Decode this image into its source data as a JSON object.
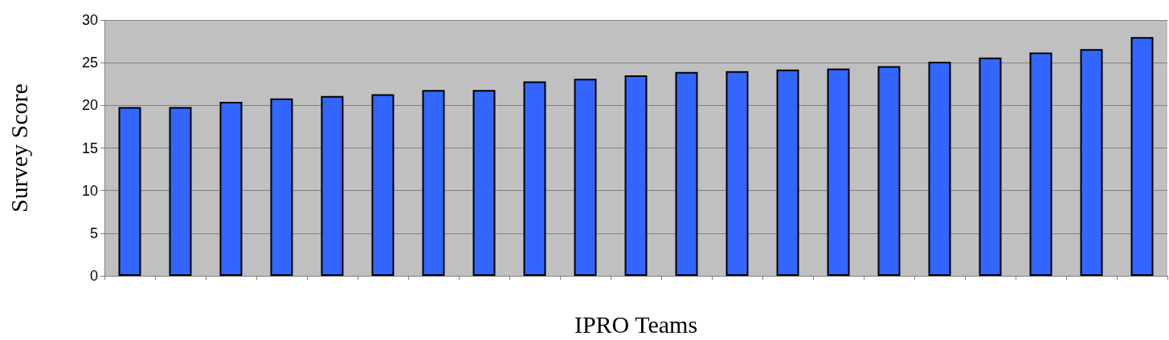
{
  "chart_data": {
    "type": "bar",
    "xlabel": "IPRO Teams",
    "ylabel": "Survey Score",
    "categories": [
      null,
      null,
      null,
      null,
      null,
      null,
      null,
      null,
      null,
      null,
      null,
      null,
      null,
      null,
      null,
      null,
      null,
      null,
      null,
      null,
      null
    ],
    "values": [
      19.8,
      19.8,
      20.4,
      20.8,
      21.1,
      21.3,
      21.8,
      21.8,
      22.8,
      23.1,
      23.5,
      23.9,
      24.0,
      24.2,
      24.3,
      24.6,
      25.1,
      25.6,
      26.2,
      26.6,
      28.0
    ],
    "color": "#3366ff",
    "ylim": [
      0,
      30
    ],
    "yticks": [
      0,
      5,
      10,
      15,
      20,
      25,
      30
    ],
    "grid": "y"
  }
}
